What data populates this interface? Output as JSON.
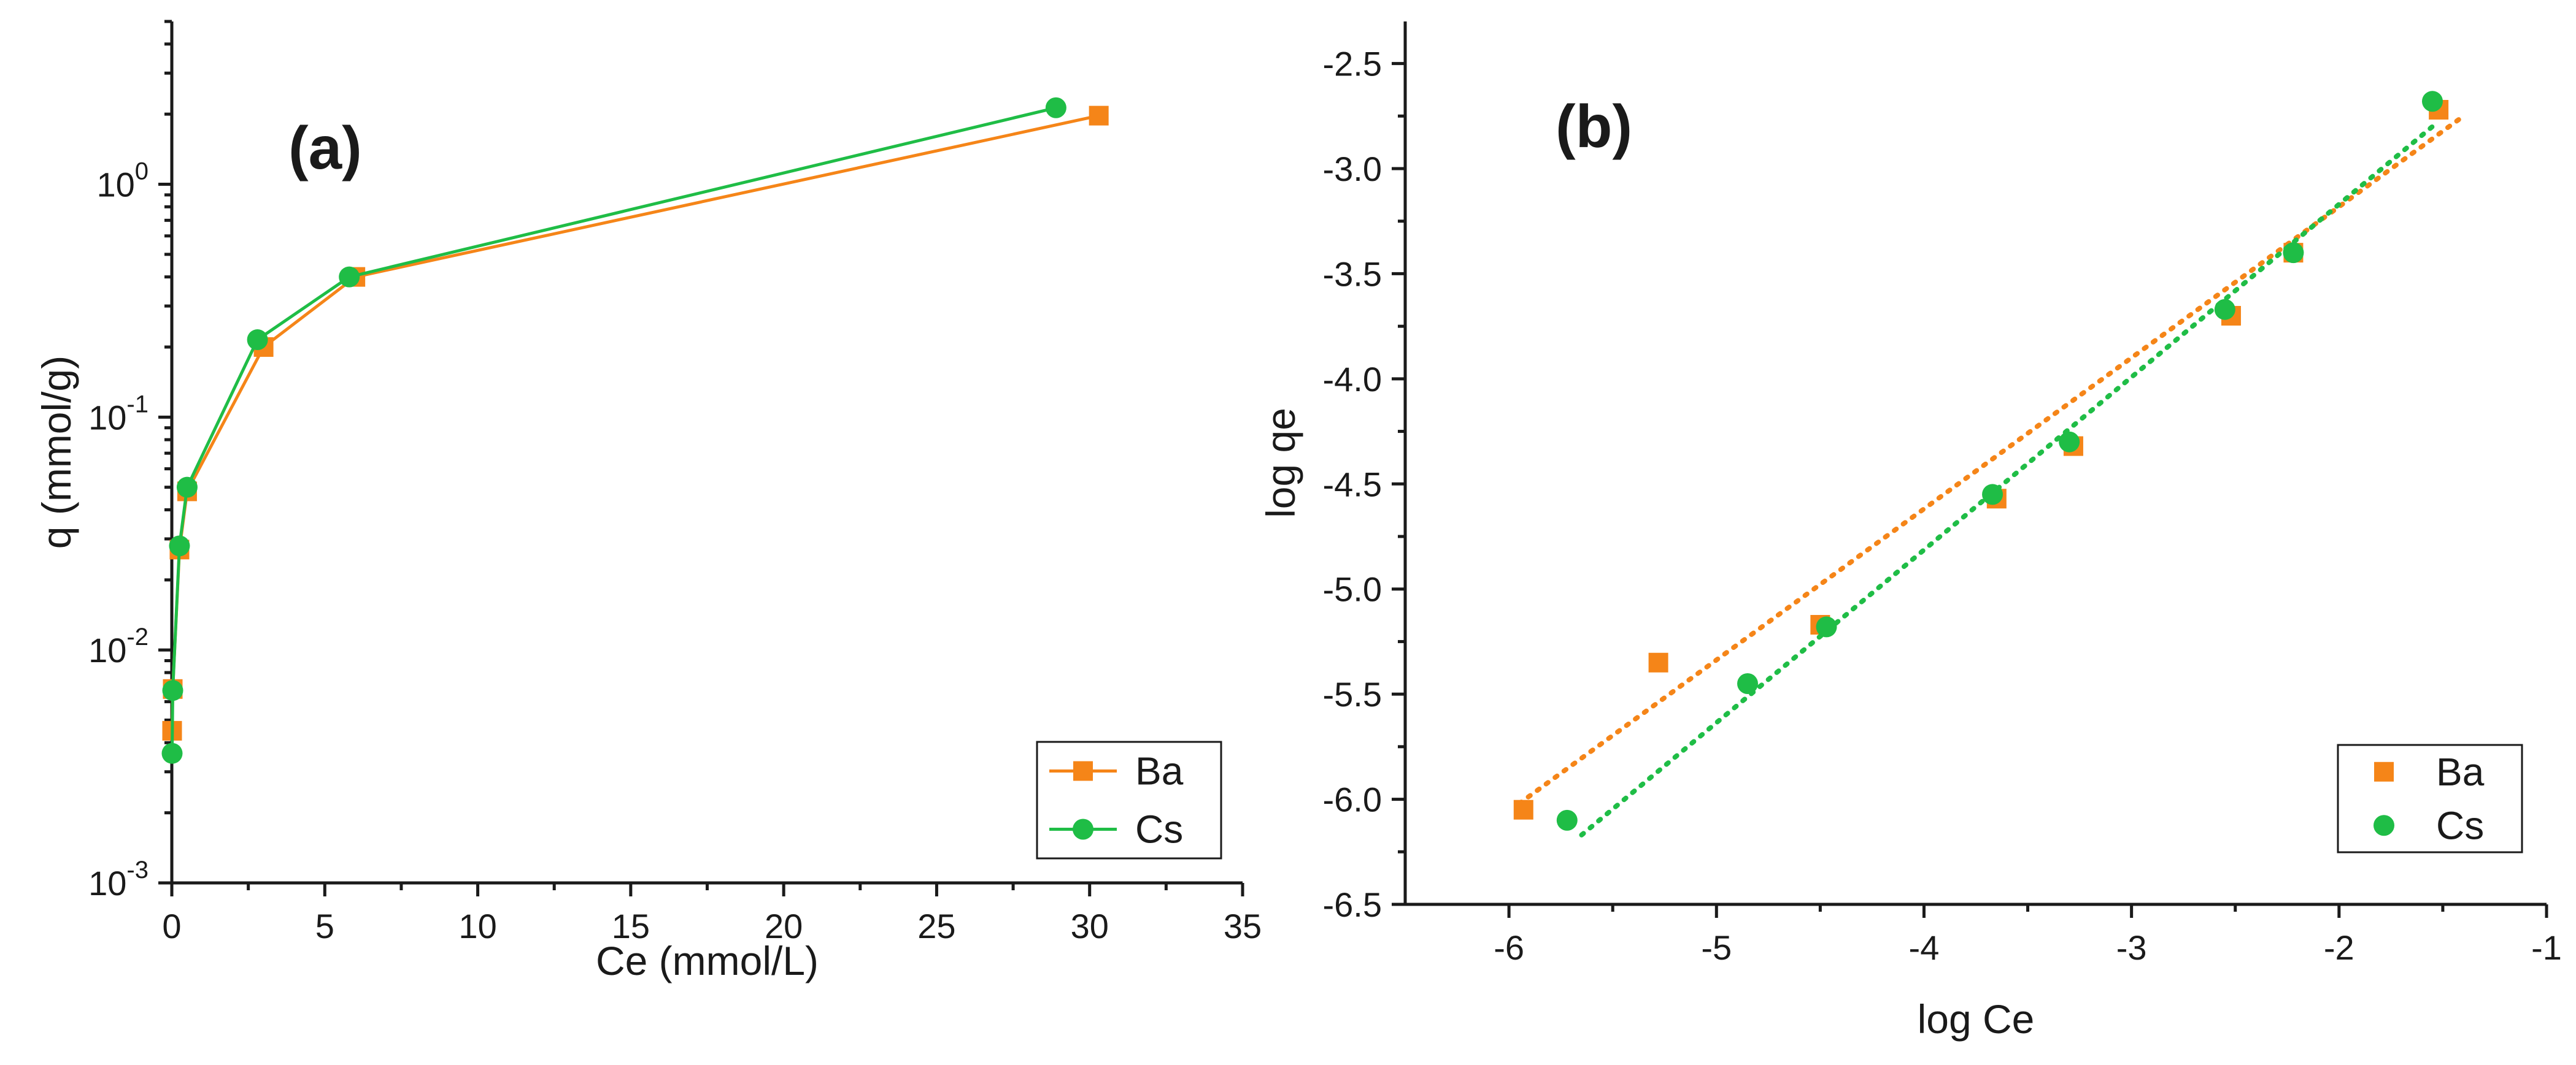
{
  "chart_data": [
    {
      "type": "line",
      "panel_label": "(a)",
      "xlabel": "Ce (mmol/L)",
      "ylabel": "q (mmol/g)",
      "xscale": "linear",
      "yscale": "log",
      "xlim": [
        0,
        35
      ],
      "ylim": [
        0.001,
        5
      ],
      "xticks": [
        0,
        5,
        10,
        15,
        20,
        25,
        30,
        35
      ],
      "xtick_labels": [
        "0",
        "5",
        "10",
        "15",
        "20",
        "25",
        "30",
        "35"
      ],
      "yticks": [
        0.001,
        0.01,
        0.1,
        1
      ],
      "ytick_labels": [
        {
          "base": "10",
          "exp": "-3"
        },
        {
          "base": "10",
          "exp": "-2"
        },
        {
          "base": "10",
          "exp": "-1"
        },
        {
          "base": "10",
          "exp": "0"
        }
      ],
      "legend_position": "bottom-right",
      "series": [
        {
          "name": "Ba",
          "marker": "square",
          "color": "#f58518",
          "x": [
            0.01,
            0.03,
            0.25,
            0.5,
            3.0,
            6.0,
            30.3
          ],
          "y": [
            0.0045,
            0.0068,
            0.027,
            0.048,
            0.2,
            0.4,
            1.97
          ]
        },
        {
          "name": "Cs",
          "marker": "circle",
          "color": "#1fbd46",
          "x": [
            0.01,
            0.03,
            0.25,
            0.5,
            2.8,
            5.8,
            28.9
          ],
          "y": [
            0.0036,
            0.0067,
            0.028,
            0.05,
            0.215,
            0.4,
            2.13
          ]
        }
      ]
    },
    {
      "type": "scatter",
      "panel_label": "(b)",
      "xlabel": "log Ce",
      "ylabel": "log qe",
      "xlim": [
        -6.5,
        -1
      ],
      "ylim": [
        -6.5,
        -2.3
      ],
      "xticks": [
        -6,
        -5,
        -4,
        -3,
        -2,
        -1
      ],
      "xtick_labels": [
        "-6",
        "-5",
        "-4",
        "-3",
        "-2",
        "-1"
      ],
      "yticks": [
        -6.5,
        -6.0,
        -5.5,
        -5.0,
        -4.5,
        -4.0,
        -3.5,
        -3.0,
        -2.5
      ],
      "ytick_labels": [
        "-6.5",
        "-6.0",
        "-5.5",
        "-5.0",
        "-4.5",
        "-4.0",
        "-3.5",
        "-3.0",
        "-2.5"
      ],
      "legend_position": "bottom-right",
      "series": [
        {
          "name": "Ba",
          "marker": "square",
          "color": "#f58518",
          "x": [
            -5.93,
            -5.28,
            -4.5,
            -3.65,
            -3.28,
            -2.52,
            -2.22,
            -1.52
          ],
          "y": [
            -6.05,
            -5.35,
            -5.17,
            -4.57,
            -4.32,
            -3.7,
            -3.4,
            -2.72
          ],
          "fit": {
            "x": [
              -5.95,
              -1.4
            ],
            "y": [
              -6.02,
              -2.75
            ]
          }
        },
        {
          "name": "Cs",
          "marker": "circle",
          "color": "#1fbd46",
          "x": [
            -5.72,
            -4.85,
            -4.47,
            -3.67,
            -3.3,
            -2.55,
            -2.22,
            -1.55
          ],
          "y": [
            -6.1,
            -5.45,
            -5.18,
            -4.55,
            -4.3,
            -3.67,
            -3.4,
            -2.68
          ],
          "fit": {
            "x": [
              -5.65,
              -1.55
            ],
            "y": [
              -6.17,
              -2.8
            ]
          }
        }
      ]
    }
  ]
}
